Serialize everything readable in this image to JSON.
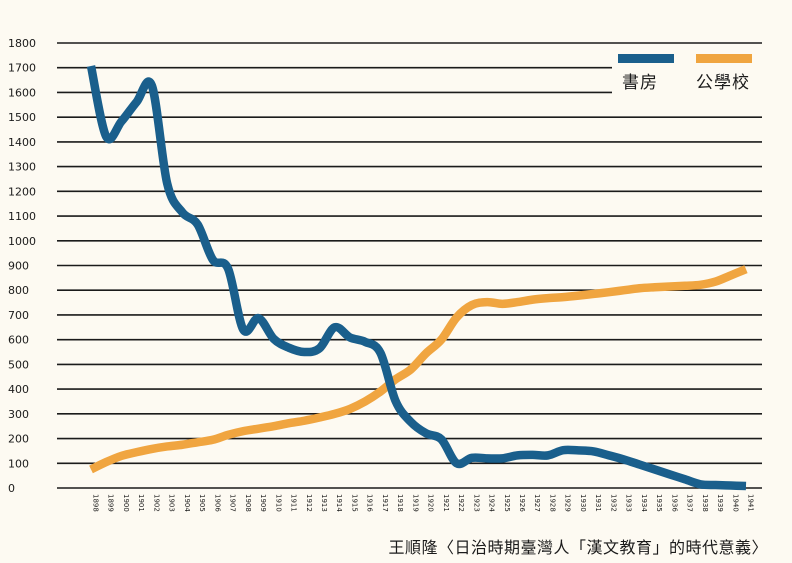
{
  "chart_data": {
    "type": "line",
    "title": "",
    "xlabel": "",
    "ylabel": "",
    "ylim": [
      0,
      1800
    ],
    "yticks": [
      0,
      100,
      200,
      300,
      400,
      500,
      600,
      700,
      800,
      900,
      1000,
      1100,
      1200,
      1300,
      1400,
      1500,
      1600,
      1700,
      1800
    ],
    "x": [
      1898,
      1899,
      1900,
      1901,
      1902,
      1903,
      1904,
      1905,
      1906,
      1907,
      1908,
      1909,
      1910,
      1911,
      1912,
      1913,
      1914,
      1915,
      1916,
      1917,
      1918,
      1919,
      1920,
      1921,
      1922,
      1923,
      1924,
      1925,
      1926,
      1927,
      1928,
      1929,
      1930,
      1931,
      1932,
      1933,
      1934,
      1935,
      1936,
      1937,
      1938,
      1939,
      1940,
      1941
    ],
    "series": [
      {
        "name": "書房",
        "color": "#1a5f8c",
        "values": [
          1707,
          1421,
          1483,
          1562,
          1627,
          1232,
          1115,
          1066,
          923,
          887,
          640,
          687,
          603,
          567,
          550,
          565,
          650,
          609,
          591,
          547,
          351,
          267,
          221,
          197,
          100,
          122,
          120,
          120,
          132,
          134,
          132,
          153,
          152,
          148,
          132,
          115,
          95,
          75,
          55,
          35,
          15,
          12,
          10,
          8
        ]
      },
      {
        "name": "公學校",
        "color": "#f0a540",
        "values": [
          75,
          105,
          130,
          145,
          158,
          168,
          175,
          185,
          195,
          215,
          230,
          240,
          250,
          262,
          272,
          285,
          300,
          320,
          350,
          390,
          440,
          480,
          545,
          600,
          690,
          740,
          752,
          745,
          752,
          762,
          768,
          772,
          778,
          785,
          792,
          800,
          808,
          812,
          815,
          818,
          822,
          835,
          860,
          885
        ]
      }
    ],
    "legend": "top-right",
    "grid": true
  },
  "caption": "王順隆〈日治時期臺灣人「漢文教育」的時代意義〉"
}
